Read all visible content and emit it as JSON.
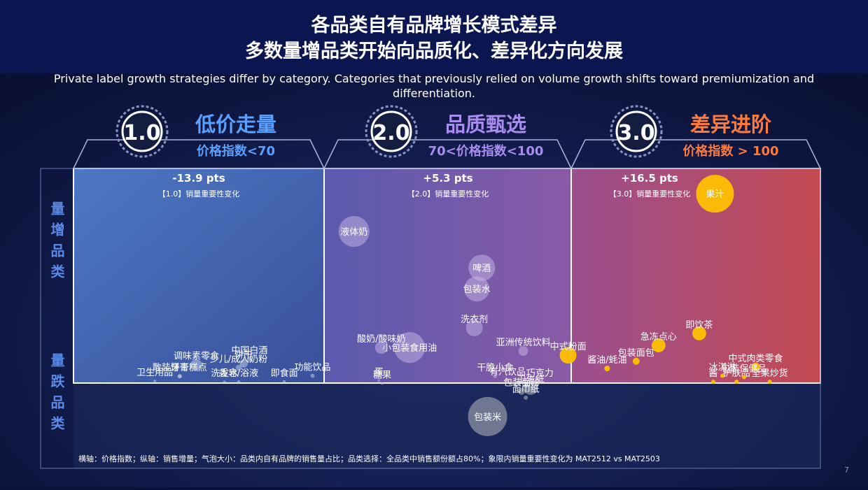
{
  "header": {
    "title_line1": "各品类自有品牌增长模式差异",
    "title_line2": "多数量增品类开始向品质化、差异化方向发展",
    "subtitle": "Private label growth strategies differ by category. Categories that previously relied on volume growth shifts toward premiumization and differentiation."
  },
  "tiers": [
    {
      "badge": "1.0",
      "name": "低价走量",
      "condition": "价格指数<70",
      "change": "-13.9 pts",
      "note": "【1.0】销量重要性变化"
    },
    {
      "badge": "2.0",
      "name": "品质甄选",
      "condition": "70<价格指数<100",
      "change": "+5.3 pts",
      "note": "【2.0】销量重要性变化"
    },
    {
      "badge": "3.0",
      "name": "差异进阶",
      "condition": "价格指数 > 100",
      "change": "+16.5 pts",
      "note": "【3.0】销量重要性变化"
    }
  ],
  "side_labels": [
    "量增品类",
    "量跌品类"
  ],
  "footnote": "横轴：价格指数；纵轴：销售增量；气泡大小：品类内自有品牌的销售量占比；品类选择：全品类中销售额份额占80%；象限内销量重要性变化为 MAT2512 vs MAT2503",
  "page_number": "7",
  "chart_data": {
    "type": "bubble",
    "xlim": [
      40,
      130
    ],
    "ylim": [
      -20,
      50
    ],
    "series": [
      {
        "color": "#c8d8f0",
        "labels": [
          "调味素零食",
          "散装饼干糕点",
          "卫生用品",
          "牙膏",
          "饼干",
          "中国白酒",
          "少儿/成人奶粉",
          "洗发水",
          "香皂/浴液",
          "即食面",
          "功能饮品"
        ],
        "x": [
          54.8,
          52.8,
          49.8,
          52.8,
          60.5,
          61.2,
          59.9,
          58.2,
          59.9,
          65.4,
          68.8
        ],
        "y": [
          4.2,
          1.5,
          0.4,
          1.5,
          4.5,
          5.5,
          3.5,
          0.2,
          0.2,
          0.2,
          1.6
        ],
        "size": [
          7,
          1,
          0.4,
          1,
          4,
          1.5,
          1.8,
          0.4,
          0.6,
          0.6,
          1
        ]
      },
      {
        "color": "#c9b8e8",
        "labels": [
          "液体奶",
          "啤酒",
          "包装水",
          "洗衣剂",
          "小包装食用油",
          "酸奶/酸味奶",
          "亚洲传统饮料",
          "蛋",
          "糖果",
          "干脆小食",
          "有汽饮品"
        ],
        "x": [
          73.8,
          89.2,
          88.6,
          88.3,
          80.5,
          77.1,
          94.2,
          76.8,
          77.2,
          90.8,
          92.3
        ],
        "y": [
          35.3,
          26.8,
          21.9,
          12.8,
          8.2,
          8.2,
          7.4,
          0.5,
          -0.2,
          1.5,
          0.6
        ],
        "size": [
          54,
          40,
          36,
          16,
          54,
          9,
          5.4,
          0.4,
          0.4,
          0.8,
          0.8
        ]
      },
      {
        "color": "#ffc000",
        "labels": [
          "果汁",
          "即饮茶",
          "急冻点心",
          "中式粉面",
          "包装面包",
          "酱油/蚝油",
          "中式肉类零食",
          "酱",
          "冰淇淋",
          "护肤品",
          "包装保健品",
          "坚果炒货"
        ],
        "x": [
          117.3,
          115.4,
          110.5,
          99.6,
          107.8,
          104.3,
          122.2,
          117.1,
          118.2,
          119.9,
          120.8,
          123.9
        ],
        "y": [
          44.1,
          11.5,
          8.7,
          6.4,
          5.0,
          3.3,
          3.7,
          0.2,
          1.6,
          0.2,
          1.3,
          0.2
        ],
        "size": [
          81,
          11,
          11,
          16,
          2.8,
          1.8,
          4,
          1,
          1,
          1,
          1,
          1
        ]
      },
      {
        "color": "#c8c8c8",
        "labels": [
          "包装米",
          "卫生纸",
          "包装面粉",
          "面巾纸",
          "巧克力"
        ],
        "x": [
          89.9,
          95.1,
          94.0,
          94.5,
          96.2
        ],
        "y": [
          -7.9,
          -1.2,
          -2.0,
          -3.5,
          0.2
        ],
        "size": [
          87,
          11,
          2.8,
          1,
          1
        ]
      }
    ]
  }
}
